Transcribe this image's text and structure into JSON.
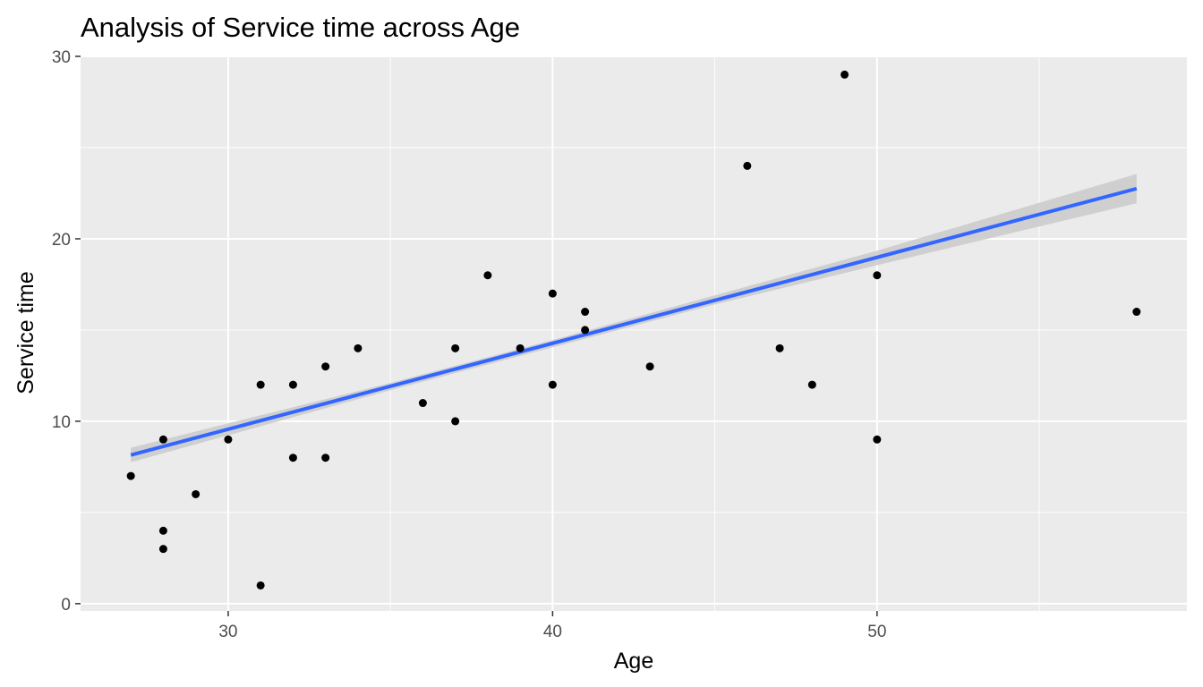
{
  "chart_data": {
    "type": "scatter",
    "title": "Analysis of Service time across Age",
    "xlabel": "Age",
    "ylabel": "Service time",
    "xlim": [
      25.45,
      59.55
    ],
    "ylim": [
      -0.4,
      30.05
    ],
    "x_ticks": [
      30,
      40,
      50
    ],
    "x_minor_ticks": [
      35,
      45,
      55
    ],
    "y_ticks": [
      0,
      10,
      20,
      30
    ],
    "y_minor_ticks": [
      5,
      15,
      25
    ],
    "x_tick_labels": [
      "30",
      "40",
      "50"
    ],
    "y_tick_labels": [
      "0",
      "10",
      "20",
      "30"
    ],
    "grid": true,
    "legend": "none",
    "points": [
      {
        "x": 27,
        "y": 7
      },
      {
        "x": 28,
        "y": 9
      },
      {
        "x": 28,
        "y": 4
      },
      {
        "x": 28,
        "y": 3
      },
      {
        "x": 29,
        "y": 6
      },
      {
        "x": 30,
        "y": 9
      },
      {
        "x": 31,
        "y": 12
      },
      {
        "x": 31,
        "y": 1
      },
      {
        "x": 32,
        "y": 12
      },
      {
        "x": 32,
        "y": 8
      },
      {
        "x": 33,
        "y": 13
      },
      {
        "x": 33,
        "y": 8
      },
      {
        "x": 34,
        "y": 14
      },
      {
        "x": 36,
        "y": 11
      },
      {
        "x": 37,
        "y": 14
      },
      {
        "x": 37,
        "y": 10
      },
      {
        "x": 38,
        "y": 18
      },
      {
        "x": 39,
        "y": 14
      },
      {
        "x": 40,
        "y": 17
      },
      {
        "x": 40,
        "y": 12
      },
      {
        "x": 41,
        "y": 16
      },
      {
        "x": 41,
        "y": 15
      },
      {
        "x": 43,
        "y": 13
      },
      {
        "x": 46,
        "y": 24
      },
      {
        "x": 47,
        "y": 14
      },
      {
        "x": 48,
        "y": 12
      },
      {
        "x": 49,
        "y": 29
      },
      {
        "x": 50,
        "y": 18
      },
      {
        "x": 50,
        "y": 9
      },
      {
        "x": 58,
        "y": 16
      }
    ],
    "trend": {
      "method": "lm",
      "x": [
        27,
        58
      ],
      "y": [
        8.15,
        22.75
      ],
      "se_band": {
        "x": [
          27,
          35,
          40,
          45,
          50,
          58
        ],
        "lower": [
          7.75,
          11.7,
          14.05,
          16.4,
          18.55,
          21.95
        ],
        "upper": [
          8.55,
          12.1,
          14.45,
          16.9,
          19.35,
          23.55
        ]
      }
    },
    "colors": {
      "panel_background": "#ebebeb",
      "grid": "#ffffff",
      "points": "#000000",
      "trend_line": "#3366ff",
      "se_band": "#cccccc",
      "tick_text": "#4d4d4d",
      "tick_mark": "#333333"
    }
  }
}
